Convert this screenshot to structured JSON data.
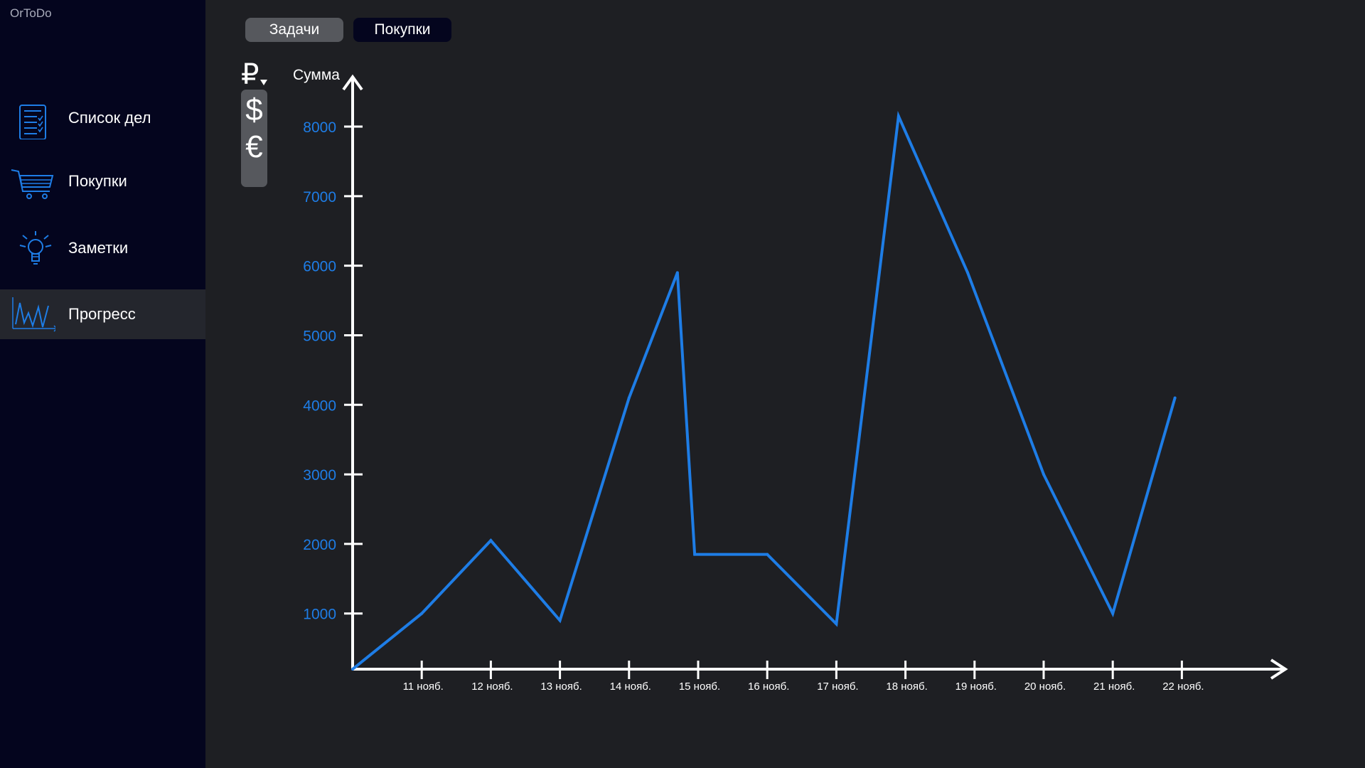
{
  "app": {
    "title": "OrToDo"
  },
  "sidebar": {
    "items": [
      {
        "label": "Список дел",
        "icon": "checklist-icon"
      },
      {
        "label": "Покупки",
        "icon": "shopping-cart-icon"
      },
      {
        "label": "Заметки",
        "icon": "lightbulb-icon"
      },
      {
        "label": "Прогресс",
        "icon": "line-chart-icon",
        "active": true
      }
    ]
  },
  "tabs": [
    {
      "label": "Задачи",
      "active": false
    },
    {
      "label": "Покупки",
      "active": true
    }
  ],
  "currency": {
    "selected": "₽",
    "options": [
      "$",
      "€"
    ]
  },
  "colors": {
    "accent": "#1e7de6",
    "sidebar_bg": "#04051e",
    "main_bg": "#1e1f23",
    "axis": "#ffffff"
  },
  "chart_data": {
    "type": "line",
    "title": "",
    "xlabel": "",
    "ylabel": "Сумма",
    "categories": [
      "11 нояб.",
      "12 нояб.",
      "13 нояб.",
      "14 нояб.",
      "15 нояб.",
      "16 нояб.",
      "17 нояб.",
      "18 нояб.",
      "19 нояб.",
      "20 нояб.",
      "21 нояб.",
      "22 нояб."
    ],
    "yticks": [
      1000,
      2000,
      3000,
      4000,
      5000,
      6000,
      7000,
      8000
    ],
    "ylim": [
      200,
      8800
    ],
    "points": [
      {
        "x": 10,
        "y": 200
      },
      {
        "x": 11,
        "y": 1000
      },
      {
        "x": 12,
        "y": 2050
      },
      {
        "x": 13,
        "y": 900
      },
      {
        "x": 14,
        "y": 4100
      },
      {
        "x": 14.7,
        "y": 5900
      },
      {
        "x": 14.95,
        "y": 1850
      },
      {
        "x": 16,
        "y": 1850
      },
      {
        "x": 17,
        "y": 850
      },
      {
        "x": 17.9,
        "y": 8150
      },
      {
        "x": 18.9,
        "y": 5900
      },
      {
        "x": 20,
        "y": 3000
      },
      {
        "x": 21,
        "y": 1000
      },
      {
        "x": 21.9,
        "y": 4100
      }
    ]
  }
}
